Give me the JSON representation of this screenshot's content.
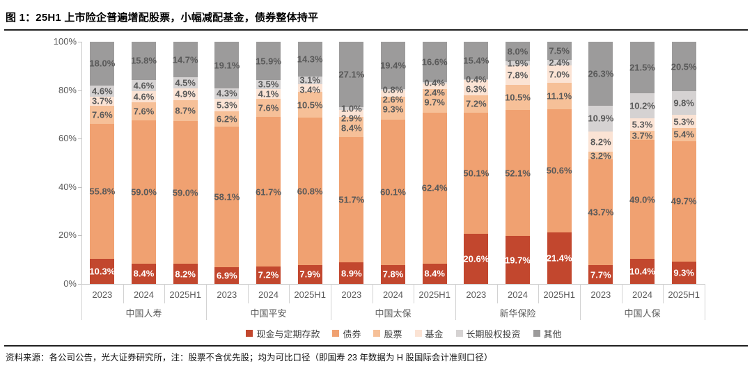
{
  "title": "图 1：25H1 上市险企普遍增配股票，小幅减配基金，债券整体持平",
  "source_note": "资料来源：各公司公告，光大证券研究所，注：股票不含优先股；均为可比口径（即国寿 23 年数据为 H 股国际会计准则口径）",
  "chart_data": {
    "type": "bar",
    "stacked": true,
    "unit": "%",
    "ylim": [
      0,
      100
    ],
    "y_axis": {
      "tick_step": 20,
      "tick_labels": [
        "0%",
        "20%",
        "40%",
        "60%",
        "80%",
        "100%"
      ]
    },
    "grid": false,
    "legend_position": "bottom",
    "groups": [
      "中国人寿",
      "中国平安",
      "中国太保",
      "新华保险",
      "中国人保"
    ],
    "years": [
      "2023",
      "2024",
      "2025H1"
    ],
    "label_color": "#595959",
    "series": [
      {
        "name": "现金与定期存款",
        "color": "#C2472E",
        "label_color": "#FFFFFF",
        "values": [
          [
            10.3,
            8.4,
            8.2
          ],
          [
            6.9,
            7.2,
            7.9
          ],
          [
            8.9,
            7.8,
            8.4
          ],
          [
            20.6,
            19.7,
            21.4
          ],
          [
            7.7,
            10.4,
            9.3
          ]
        ]
      },
      {
        "name": "债券",
        "color": "#F0A171",
        "values": [
          [
            55.8,
            59.0,
            59.0
          ],
          [
            58.1,
            61.7,
            60.8
          ],
          [
            51.7,
            60.1,
            62.4
          ],
          [
            50.1,
            52.1,
            50.6
          ],
          [
            43.7,
            49.0,
            49.7
          ]
        ]
      },
      {
        "name": "股票",
        "color": "#F6C098",
        "values": [
          [
            7.6,
            7.6,
            8.7
          ],
          [
            6.2,
            7.6,
            10.5
          ],
          [
            8.4,
            9.3,
            9.7
          ],
          [
            7.2,
            10.5,
            11.1
          ],
          [
            3.2,
            3.7,
            5.4
          ]
        ]
      },
      {
        "name": "基金",
        "color": "#FBE3D4",
        "values": [
          [
            3.7,
            4.6,
            4.9
          ],
          [
            5.3,
            4.1,
            3.4
          ],
          [
            2.9,
            2.6,
            2.4
          ],
          [
            6.3,
            7.8,
            7.0
          ],
          [
            8.2,
            5.3,
            5.3
          ]
        ]
      },
      {
        "name": "长期股权投资",
        "color": "#D5D2D2",
        "values": [
          [
            4.6,
            4.6,
            4.5
          ],
          [
            4.3,
            3.5,
            3.1
          ],
          [
            1.0,
            0.8,
            0.4
          ],
          [
            0.4,
            1.9,
            2.4
          ],
          [
            10.9,
            10.2,
            9.8
          ]
        ]
      },
      {
        "name": "其他",
        "color": "#9C9B9B",
        "values": [
          [
            18.0,
            15.8,
            14.7
          ],
          [
            19.1,
            15.9,
            14.3
          ],
          [
            27.1,
            19.4,
            16.6
          ],
          [
            15.4,
            8.0,
            7.5
          ],
          [
            26.3,
            21.5,
            20.5
          ]
        ]
      }
    ]
  }
}
